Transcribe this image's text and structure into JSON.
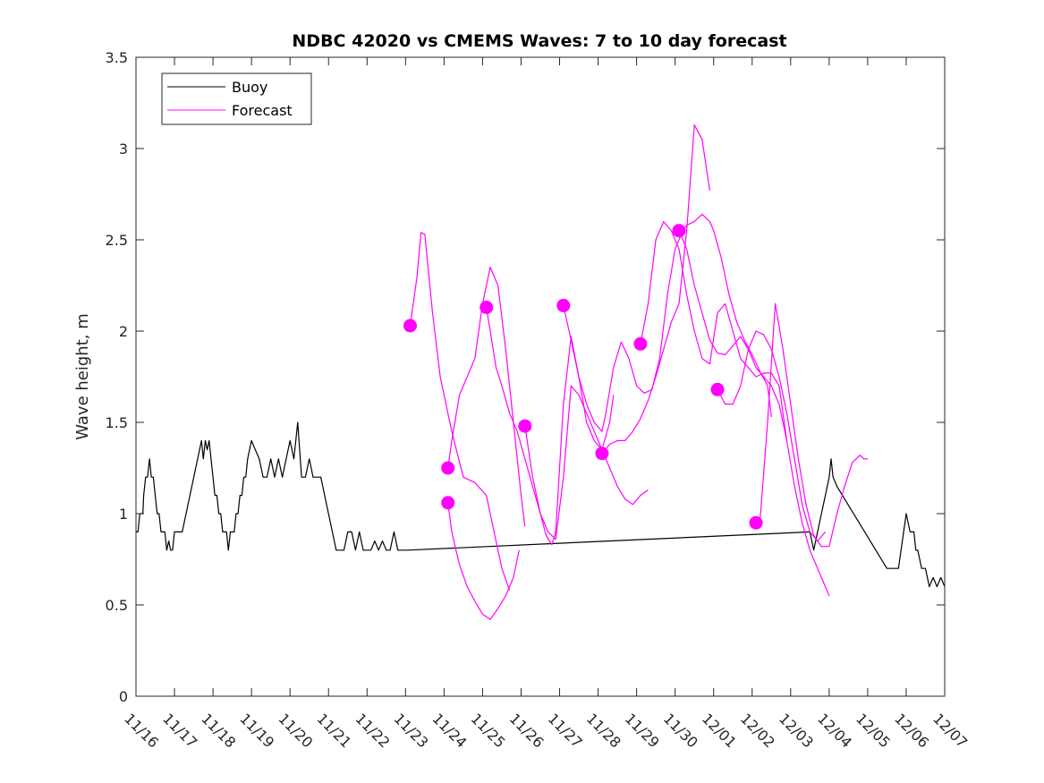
{
  "chart_data": {
    "type": "line",
    "title": "NDBC 42020 vs CMEMS Waves: 7 to 10 day forecast",
    "xlabel": "",
    "ylabel": "Wave height, m",
    "xlim": [
      0,
      21
    ],
    "ylim": [
      0,
      3.5
    ],
    "x_tick_labels": [
      "11/16",
      "11/17",
      "11/18",
      "11/19",
      "11/20",
      "11/21",
      "11/22",
      "11/23",
      "11/24",
      "11/25",
      "11/26",
      "11/27",
      "11/28",
      "11/29",
      "11/30",
      "12/01",
      "12/02",
      "12/03",
      "12/04",
      "12/05",
      "12/06",
      "12/07"
    ],
    "y_ticks": [
      0,
      0.5,
      1,
      1.5,
      2,
      2.5,
      3,
      3.5
    ],
    "y_tick_labels": [
      "0",
      "0.5",
      "1",
      "1.5",
      "2",
      "2.5",
      "3",
      "3.5"
    ],
    "legend": {
      "position": "top-left",
      "entries": [
        {
          "name": "Buoy",
          "color": "#000000"
        },
        {
          "name": "Forecast",
          "color": "#ff00ff"
        }
      ]
    },
    "buoy": {
      "name": "Buoy",
      "color": "#000000",
      "x": [
        0.0,
        0.05,
        0.1,
        0.18,
        0.2,
        0.25,
        0.3,
        0.35,
        0.4,
        0.45,
        0.5,
        0.55,
        0.6,
        0.65,
        0.7,
        0.75,
        0.8,
        0.85,
        0.9,
        0.95,
        1.0,
        1.1,
        1.2,
        1.3,
        1.4,
        1.5,
        1.6,
        1.7,
        1.75,
        1.8,
        1.85,
        1.9,
        1.95,
        2.0,
        2.05,
        2.1,
        2.15,
        2.2,
        2.25,
        2.3,
        2.35,
        2.4,
        2.45,
        2.5,
        2.55,
        2.6,
        2.65,
        2.7,
        2.75,
        2.8,
        2.85,
        2.9,
        3.0,
        3.1,
        3.2,
        3.3,
        3.4,
        3.5,
        3.6,
        3.7,
        3.8,
        3.9,
        4.0,
        4.1,
        4.2,
        4.3,
        4.4,
        4.5,
        4.6,
        4.7,
        4.8,
        4.9,
        5.0,
        5.1,
        5.2,
        5.3,
        5.4,
        5.5,
        5.6,
        5.7,
        5.8,
        5.9,
        6.0,
        6.1,
        6.2,
        6.3,
        6.4,
        6.5,
        6.6,
        6.7,
        6.75,
        6.8,
        6.9,
        7.0,
        7.05,
        17.5,
        17.55,
        17.6,
        17.7,
        17.8,
        17.9,
        18.0,
        18.05,
        18.1,
        18.2,
        19.5,
        19.8,
        20.0,
        20.1,
        20.2,
        20.25,
        20.3,
        20.4,
        20.5,
        20.6,
        20.7,
        20.8,
        20.9,
        21.0
      ],
      "values": [
        0.9,
        0.9,
        1.0,
        1.0,
        1.1,
        1.2,
        1.2,
        1.3,
        1.2,
        1.2,
        1.1,
        1.0,
        1.0,
        0.9,
        0.9,
        0.9,
        0.8,
        0.85,
        0.8,
        0.8,
        0.9,
        0.9,
        0.9,
        1.0,
        1.1,
        1.2,
        1.3,
        1.4,
        1.3,
        1.4,
        1.35,
        1.4,
        1.3,
        1.2,
        1.1,
        1.1,
        1.0,
        1.0,
        0.9,
        0.9,
        0.9,
        0.8,
        0.9,
        0.9,
        0.9,
        1.0,
        1.0,
        1.1,
        1.1,
        1.2,
        1.2,
        1.3,
        1.4,
        1.35,
        1.3,
        1.2,
        1.2,
        1.3,
        1.2,
        1.3,
        1.2,
        1.3,
        1.4,
        1.3,
        1.5,
        1.2,
        1.2,
        1.3,
        1.2,
        1.2,
        1.2,
        1.1,
        1.0,
        0.9,
        0.8,
        0.8,
        0.8,
        0.9,
        0.9,
        0.8,
        0.9,
        0.8,
        0.8,
        0.8,
        0.85,
        0.8,
        0.85,
        0.8,
        0.8,
        0.9,
        0.85,
        0.8,
        0.8,
        0.8,
        0.8,
        0.9,
        0.85,
        0.8,
        0.9,
        1.0,
        1.1,
        1.2,
        1.3,
        1.2,
        1.15,
        0.7,
        0.7,
        1.0,
        0.9,
        0.9,
        0.8,
        0.8,
        0.7,
        0.7,
        0.6,
        0.65,
        0.6,
        0.65,
        0.6
      ]
    },
    "forecast_series": [
      {
        "start": [
          7.12,
          2.03
        ],
        "x": [
          7.12,
          7.3,
          7.4,
          7.5,
          7.7,
          7.9,
          8.2,
          8.5,
          8.8,
          9.1,
          9.3,
          9.5,
          9.7
        ],
        "values": [
          2.03,
          2.3,
          2.54,
          2.53,
          2.1,
          1.75,
          1.45,
          1.2,
          1.17,
          1.1,
          0.9,
          0.7,
          0.58
        ]
      },
      {
        "start": [
          8.1,
          1.25
        ],
        "x": [
          8.1,
          8.2,
          8.4,
          8.6,
          8.8,
          9.0,
          9.2,
          9.4,
          9.6,
          9.8,
          10.0,
          10.1
        ],
        "values": [
          1.25,
          1.4,
          1.65,
          1.75,
          1.85,
          2.15,
          2.35,
          2.25,
          1.9,
          1.5,
          1.1,
          0.93
        ]
      },
      {
        "start": [
          8.1,
          1.06
        ],
        "x": [
          8.1,
          8.2,
          8.4,
          8.6,
          8.8,
          9.0,
          9.2,
          9.4,
          9.6,
          9.8,
          9.95
        ],
        "values": [
          1.06,
          0.9,
          0.72,
          0.6,
          0.52,
          0.45,
          0.42,
          0.48,
          0.55,
          0.65,
          0.8
        ]
      },
      {
        "start": [
          9.1,
          2.13
        ],
        "x": [
          9.1,
          9.2,
          9.35,
          9.5,
          9.7,
          9.9,
          10.1,
          10.3,
          10.5,
          10.65,
          10.8,
          10.9,
          11.1,
          11.3,
          11.5,
          11.7,
          11.9,
          12.1,
          12.3,
          12.4
        ],
        "values": [
          2.13,
          2.0,
          1.8,
          1.7,
          1.55,
          1.45,
          1.3,
          1.15,
          1.0,
          0.88,
          0.83,
          0.9,
          1.6,
          1.97,
          1.75,
          1.5,
          1.4,
          1.35,
          1.5,
          1.65
        ]
      },
      {
        "start": [
          10.1,
          1.48
        ],
        "x": [
          10.1,
          10.3,
          10.5,
          10.7,
          10.9,
          11.1,
          11.3,
          11.5,
          11.7,
          11.9,
          12.1,
          12.3,
          12.5,
          12.7,
          12.9,
          13.1,
          13.3
        ],
        "values": [
          1.48,
          1.2,
          1.0,
          0.9,
          0.86,
          1.2,
          1.7,
          1.65,
          1.55,
          1.45,
          1.35,
          1.25,
          1.15,
          1.08,
          1.05,
          1.1,
          1.13
        ]
      },
      {
        "start": [
          11.1,
          2.14
        ],
        "x": [
          11.1,
          11.3,
          11.5,
          11.7,
          11.9,
          12.1,
          12.2,
          12.4,
          12.6,
          12.8,
          13.0,
          13.2,
          13.4,
          13.6,
          13.8,
          14.0,
          14.2,
          14.3,
          14.5,
          14.7,
          14.9,
          15.0,
          15.2,
          15.4,
          15.6,
          15.8,
          16.0,
          16.2,
          16.4,
          16.5
        ],
        "values": [
          2.14,
          1.95,
          1.75,
          1.6,
          1.5,
          1.45,
          1.55,
          1.8,
          1.94,
          1.85,
          1.7,
          1.66,
          1.68,
          1.85,
          2.2,
          2.45,
          2.55,
          2.58,
          2.6,
          2.64,
          2.6,
          2.55,
          2.4,
          2.2,
          2.05,
          1.95,
          1.87,
          1.78,
          1.7,
          1.53
        ]
      },
      {
        "start": [
          12.1,
          1.33
        ],
        "x": [
          12.1,
          12.3,
          12.5,
          12.7,
          12.9,
          13.1,
          13.3,
          13.5,
          13.7,
          13.9,
          14.1,
          14.3,
          14.5,
          14.7,
          14.9
        ],
        "values": [
          1.33,
          1.38,
          1.4,
          1.4,
          1.45,
          1.52,
          1.62,
          1.75,
          1.9,
          2.05,
          2.15,
          2.55,
          3.13,
          3.05,
          2.77
        ]
      },
      {
        "start": [
          13.1,
          1.93
        ],
        "x": [
          13.1,
          13.3,
          13.5,
          13.7,
          13.9,
          14.1,
          14.3,
          14.5,
          14.7,
          14.9,
          15.1,
          15.3,
          15.5,
          15.7,
          15.9,
          16.1,
          16.3,
          16.5,
          16.7,
          16.9
        ],
        "values": [
          1.93,
          2.15,
          2.5,
          2.6,
          2.55,
          2.45,
          2.2,
          2.0,
          1.85,
          1.82,
          2.1,
          2.15,
          2.0,
          1.85,
          1.8,
          1.75,
          1.77,
          1.77,
          1.7,
          1.4
        ]
      },
      {
        "start": [
          14.1,
          2.55
        ],
        "x": [
          14.1,
          14.3,
          14.5,
          14.7,
          14.9,
          15.1,
          15.3,
          15.5,
          15.7,
          15.9,
          16.1,
          16.3,
          16.5,
          16.7,
          16.9,
          17.1,
          17.3,
          17.5,
          17.7,
          17.9,
          18.0
        ],
        "values": [
          2.55,
          2.45,
          2.25,
          2.1,
          1.95,
          1.88,
          1.87,
          1.92,
          1.97,
          1.9,
          1.8,
          1.75,
          1.7,
          1.6,
          1.4,
          1.15,
          0.95,
          0.8,
          0.7,
          0.6,
          0.55
        ]
      },
      {
        "start": [
          15.1,
          1.68
        ],
        "x": [
          15.1,
          15.3,
          15.5,
          15.7,
          15.9,
          16.1,
          16.3,
          16.5,
          16.7,
          16.9,
          17.1,
          17.3,
          17.5,
          17.7,
          17.9
        ],
        "values": [
          1.68,
          1.6,
          1.6,
          1.7,
          1.9,
          2.0,
          1.98,
          1.9,
          1.75,
          1.55,
          1.3,
          1.05,
          0.9,
          0.85,
          0.9
        ]
      },
      {
        "start": [
          16.1,
          0.95
        ],
        "x": [
          16.1,
          16.2,
          16.4,
          16.6,
          16.8,
          17.0,
          17.2,
          17.4,
          17.6,
          17.8,
          18.0,
          18.2,
          18.4,
          18.6,
          18.8,
          18.9,
          19.0
        ],
        "values": [
          0.95,
          0.95,
          1.5,
          2.15,
          1.9,
          1.6,
          1.3,
          1.05,
          0.88,
          0.82,
          0.82,
          1.0,
          1.15,
          1.28,
          1.32,
          1.3,
          1.3
        ]
      }
    ]
  }
}
